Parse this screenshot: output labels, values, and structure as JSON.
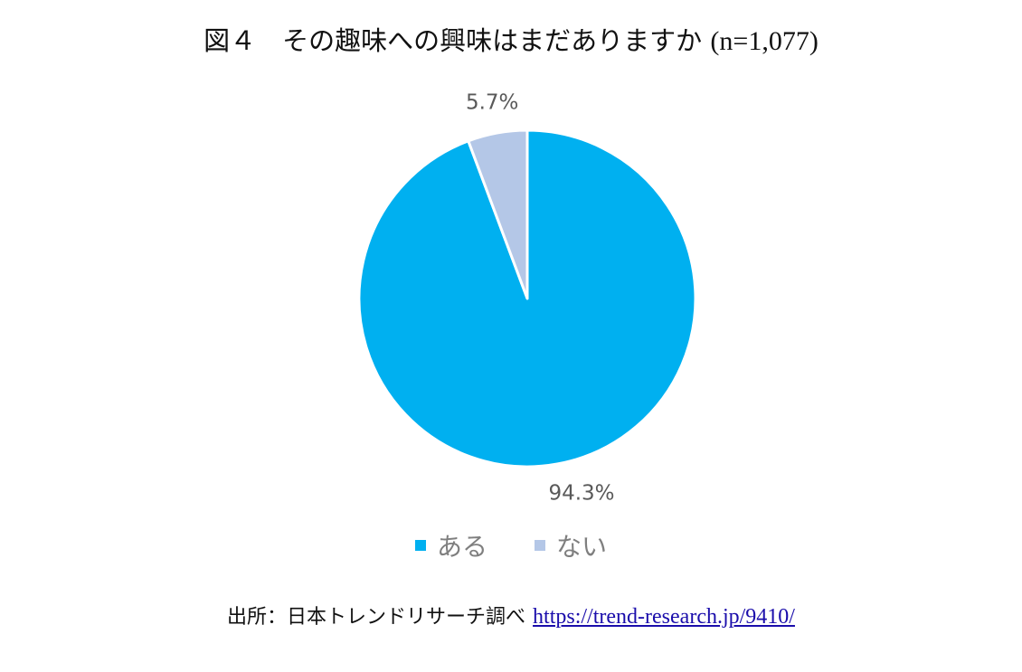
{
  "title": {
    "text": "図４　その趣味への興味はまだありますか",
    "n_count": "(n=1,077)"
  },
  "chart_data": {
    "type": "pie",
    "categories": [
      "ある",
      "ない"
    ],
    "values": [
      94.3,
      5.7
    ],
    "labels": [
      "94.3%",
      "5.7%"
    ],
    "colors": [
      "#00B0F0",
      "#B4C7E7"
    ],
    "legend_position": "bottom",
    "start_angle": "12 o'clock",
    "direction": "clockwise"
  },
  "legend": {
    "items": [
      {
        "label": "ある",
        "color": "#00B0F0"
      },
      {
        "label": "ない",
        "color": "#B4C7E7"
      }
    ]
  },
  "source": {
    "prefix": "出所：日本トレンドリサーチ調べ",
    "link_text": "https://trend-research.jp/9410/"
  }
}
